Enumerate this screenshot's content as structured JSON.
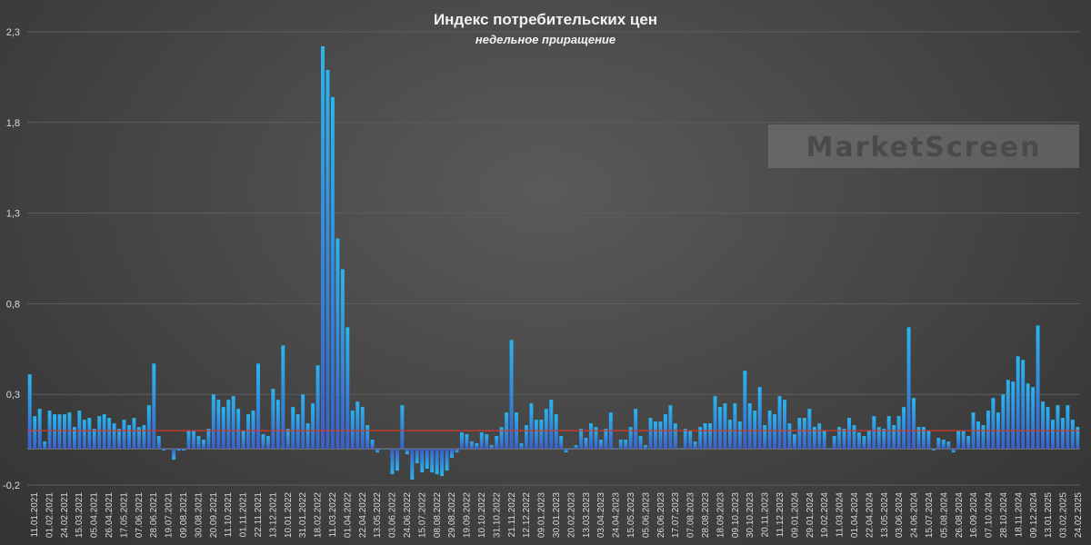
{
  "chart_data": {
    "type": "bar",
    "title": "Индекс потребительских цен",
    "subtitle": "недельное приращение",
    "ylim": [
      -0.2,
      2.3
    ],
    "yticks": [
      -0.2,
      0.3,
      0.8,
      1.3,
      1.8,
      2.3
    ],
    "ytick_labels": [
      "-0,2",
      "0,3",
      "0,8",
      "1,3",
      "1,8",
      "2,3"
    ],
    "grid": true,
    "reference_line": 0.1,
    "watermark": "MarketScreen",
    "colors": {
      "bar": "#2ab0ee",
      "reference_line": "#d23a2a"
    },
    "x_tick_labels": [
      "11.01.2021",
      "01.02.2021",
      "24.02.2021",
      "15.03.2021",
      "05.04.2021",
      "26.04.2021",
      "17.05.2021",
      "07.06.2021",
      "28.06.2021",
      "19.07.2021",
      "09.08.2021",
      "30.08.2021",
      "20.09.2021",
      "11.10.2021",
      "01.11.2021",
      "22.11.2021",
      "13.12.2021",
      "10.01.2022",
      "31.01.2022",
      "18.02.2022",
      "11.03.2022",
      "01.04.2022",
      "22.04.2022",
      "13.05.2022",
      "03.06.2022",
      "24.06.2022",
      "15.07.2022",
      "08.08.2022",
      "29.08.2022",
      "19.09.2022",
      "10.10.2022",
      "31.10.2022",
      "21.11.2022",
      "12.12.2022",
      "09.01.2023",
      "30.01.2023",
      "20.02.2023",
      "13.03.2023",
      "03.04.2023",
      "24.04.2023",
      "15.05.2023",
      "05.06.2023",
      "26.06.2023",
      "17.07.2023",
      "07.08.2023",
      "28.08.2023",
      "18.09.2023",
      "09.10.2023",
      "30.10.2023",
      "20.11.2023",
      "11.12.2023",
      "09.01.2024",
      "29.01.2024",
      "19.02.2024",
      "11.03.2024",
      "01.04.2024",
      "22.04.2024",
      "13.05.2024",
      "03.06.2024",
      "24.06.2024",
      "15.07.2024",
      "05.08.2024",
      "26.08.2024",
      "16.09.2024",
      "07.10.2024",
      "28.10.2024",
      "18.11.2024",
      "09.12.2024",
      "13.01.2025",
      "03.02.2025",
      "24.02.2025"
    ],
    "values": [
      0.41,
      0.18,
      0.22,
      0.04,
      0.21,
      0.19,
      0.19,
      0.19,
      0.2,
      0.12,
      0.21,
      0.16,
      0.17,
      0.11,
      0.18,
      0.19,
      0.17,
      0.14,
      0.11,
      0.16,
      0.13,
      0.17,
      0.12,
      0.13,
      0.24,
      0.47,
      0.07,
      -0.01,
      0,
      -0.06,
      -0.01,
      -0.01,
      0.1,
      0.1,
      0.07,
      0.05,
      0.11,
      0.3,
      0.27,
      0.23,
      0.27,
      0.29,
      0.22,
      0.1,
      0.19,
      0.21,
      0.47,
      0.08,
      0.07,
      0.33,
      0.27,
      0.57,
      0.11,
      0.23,
      0.19,
      0.3,
      0.14,
      0.25,
      0.46,
      2.22,
      2.09,
      1.94,
      1.16,
      0.99,
      0.67,
      0.21,
      0.26,
      0.23,
      0.13,
      0.05,
      -0.02,
      0,
      0,
      -0.14,
      -0.12,
      0.24,
      -0.03,
      -0.17,
      -0.08,
      -0.13,
      -0.11,
      -0.13,
      -0.14,
      -0.15,
      -0.12,
      -0.05,
      -0.02,
      0.09,
      0.08,
      0.04,
      0.03,
      0.09,
      0.08,
      0.02,
      0.07,
      0.12,
      0.2,
      0.6,
      0.2,
      0.03,
      0.13,
      0.25,
      0.16,
      0.16,
      0.22,
      0.27,
      0.19,
      0.07,
      -0.02,
      0,
      0.02,
      0.11,
      0.06,
      0.14,
      0.12,
      0.05,
      0.11,
      0.2,
      0,
      0.05,
      0.05,
      0.12,
      0.22,
      0.07,
      0.02,
      0.17,
      0.15,
      0.15,
      0.19,
      0.24,
      0.14,
      0,
      0.11,
      0.1,
      0.04,
      0.12,
      0.14,
      0.14,
      0.29,
      0.23,
      0.25,
      0.16,
      0.25,
      0.15,
      0.43,
      0.25,
      0.21,
      0.34,
      0.13,
      0.21,
      0.19,
      0.29,
      0.27,
      0.14,
      0.08,
      0.17,
      0.17,
      0.22,
      0.12,
      0.14,
      0.1,
      0,
      0.07,
      0.12,
      0.11,
      0.17,
      0.13,
      0.09,
      0.07,
      0.1,
      0.18,
      0.12,
      0.11,
      0.18,
      0.13,
      0.18,
      0.23,
      0.67,
      0.28,
      0.12,
      0.12,
      0.1,
      -0.01,
      0.06,
      0.05,
      0.04,
      -0.02,
      0.1,
      0.1,
      0.07,
      0.2,
      0.15,
      0.13,
      0.21,
      0.28,
      0.2,
      0.3,
      0.38,
      0.37,
      0.51,
      0.49,
      0.36,
      0.34,
      0.68,
      0.26,
      0.23,
      0.16,
      0.24,
      0.17,
      0.24,
      0.16,
      0.12
    ]
  }
}
